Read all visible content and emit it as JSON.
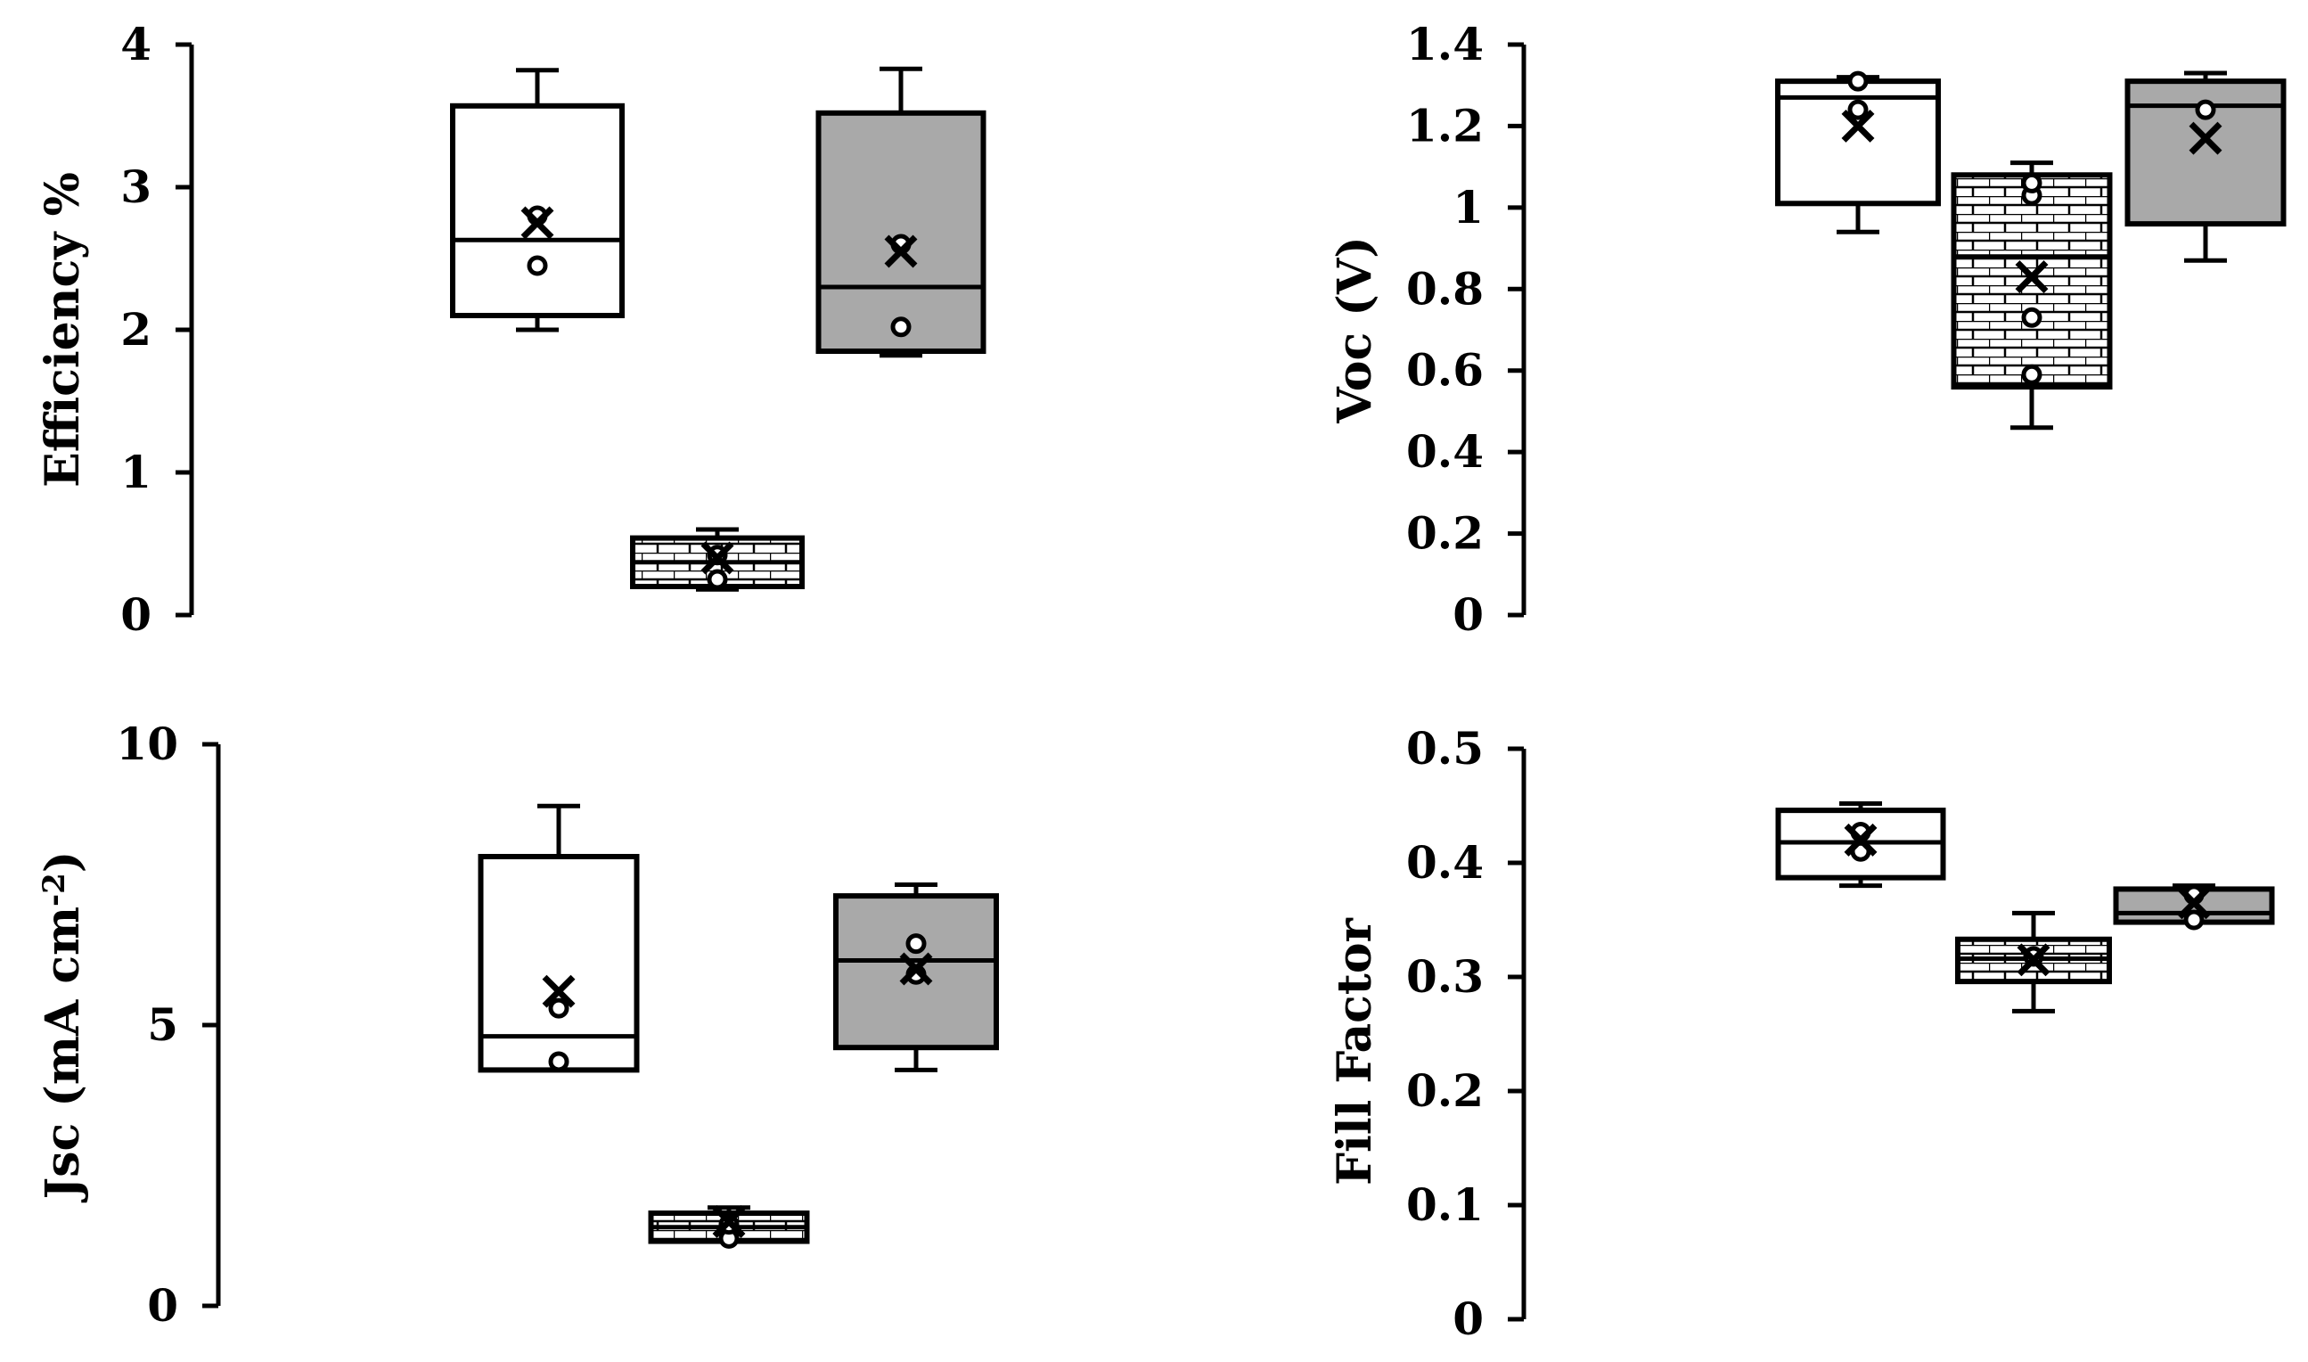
{
  "chart_data": [
    {
      "type": "box",
      "title": "",
      "xlabel": "",
      "ylabel": "Efficiency %",
      "ylim": [
        0,
        4
      ],
      "yticks": [
        "0",
        "1",
        "2",
        "3",
        "4"
      ],
      "grid": false,
      "series": [
        {
          "fill": "white",
          "whisker_low": 2.0,
          "q1": 2.1,
          "median": 2.63,
          "q3": 3.57,
          "whisker_high": 3.82,
          "mean": 2.75,
          "points": [
            2.45,
            2.8
          ]
        },
        {
          "fill": "brick",
          "whisker_low": 0.18,
          "q1": 0.2,
          "median": 0.37,
          "q3": 0.54,
          "whisker_high": 0.6,
          "mean": 0.4,
          "points": [
            0.25,
            0.42
          ]
        },
        {
          "fill": "gray",
          "whisker_low": 1.82,
          "q1": 1.85,
          "median": 2.3,
          "q3": 3.52,
          "whisker_high": 3.83,
          "mean": 2.55,
          "points": [
            2.02,
            2.6
          ]
        }
      ]
    },
    {
      "type": "box",
      "title": "",
      "xlabel": "",
      "ylabel": "Voc (V)",
      "ylim": [
        0,
        1.4
      ],
      "yticks": [
        "0",
        "0.2",
        "0.4",
        "0.6",
        "0.8",
        "1",
        "1.2",
        "1.4"
      ],
      "grid": false,
      "series": [
        {
          "fill": "white",
          "whisker_low": 0.94,
          "q1": 1.01,
          "median": 1.27,
          "q3": 1.31,
          "whisker_high": 1.32,
          "mean": 1.2,
          "points": [
            1.24,
            1.31
          ]
        },
        {
          "fill": "brick",
          "whisker_low": 0.46,
          "q1": 0.56,
          "median": 0.88,
          "q3": 1.08,
          "whisker_high": 1.11,
          "mean": 0.83,
          "points": [
            0.59,
            0.73,
            1.03,
            1.06
          ]
        },
        {
          "fill": "gray",
          "whisker_low": 0.87,
          "q1": 0.96,
          "median": 1.25,
          "q3": 1.31,
          "whisker_high": 1.33,
          "mean": 1.17,
          "points": [
            1.24
          ]
        }
      ]
    },
    {
      "type": "box",
      "title": "",
      "xlabel": "",
      "ylabel": "Jsc (mA cm-2)",
      "ylim": [
        0,
        10
      ],
      "yticks": [
        "0",
        "5",
        "10"
      ],
      "grid": false,
      "series": [
        {
          "fill": "white",
          "whisker_low": 4.2,
          "q1": 4.2,
          "median": 4.8,
          "q3": 8.0,
          "whisker_high": 8.9,
          "mean": 5.6,
          "points": [
            4.35,
            5.3
          ]
        },
        {
          "fill": "brick",
          "whisker_low": 1.15,
          "q1": 1.15,
          "median": 1.4,
          "q3": 1.65,
          "whisker_high": 1.75,
          "mean": 1.5,
          "points": [
            1.2,
            1.45
          ]
        },
        {
          "fill": "gray",
          "whisker_low": 4.2,
          "q1": 4.6,
          "median": 6.15,
          "q3": 7.3,
          "whisker_high": 7.5,
          "mean": 6.0,
          "points": [
            6.45,
            5.9
          ]
        }
      ]
    },
    {
      "type": "box",
      "title": "",
      "xlabel": "",
      "ylabel": "Fill Factor",
      "ylim": [
        0,
        0.5
      ],
      "yticks": [
        "0",
        "0.1",
        "0.2",
        "0.3",
        "0.4",
        "0.5"
      ],
      "grid": false,
      "series": [
        {
          "fill": "white",
          "whisker_low": 0.38,
          "q1": 0.387,
          "median": 0.418,
          "q3": 0.446,
          "whisker_high": 0.452,
          "mean": 0.42,
          "points": [
            0.41,
            0.427
          ]
        },
        {
          "fill": "brick",
          "whisker_low": 0.27,
          "q1": 0.296,
          "median": 0.316,
          "q3": 0.333,
          "whisker_high": 0.356,
          "mean": 0.315,
          "points": [
            0.318
          ]
        },
        {
          "fill": "gray",
          "whisker_low": 0.348,
          "q1": 0.348,
          "median": 0.356,
          "q3": 0.377,
          "whisker_high": 0.38,
          "mean": 0.365,
          "points": [
            0.35,
            0.372
          ]
        }
      ]
    }
  ]
}
